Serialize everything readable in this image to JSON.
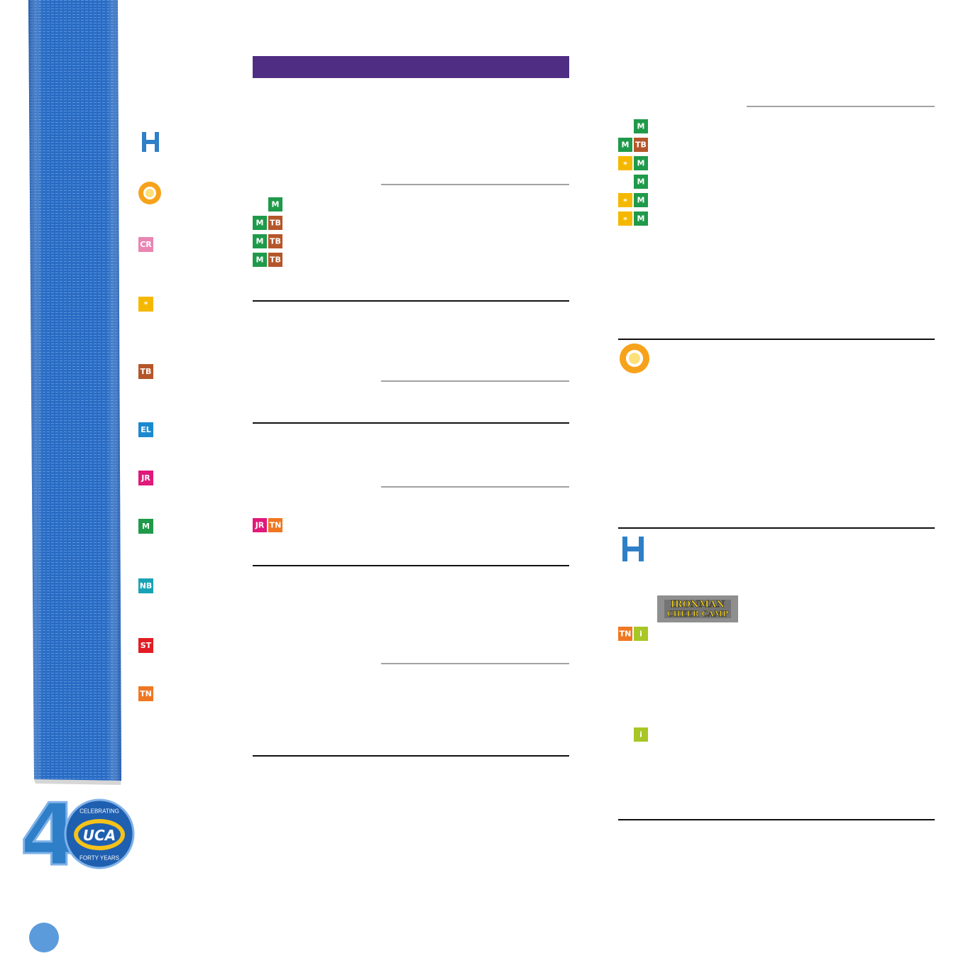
{
  "legend": [
    "CR",
    "TB",
    "EL",
    "JR",
    "M",
    "NB",
    "ST",
    "TN"
  ],
  "left_badges": [
    [
      "M"
    ],
    [
      "M",
      "TB"
    ],
    [
      "M",
      "TB"
    ],
    [
      "M",
      "TB"
    ],
    [
      "JR",
      "TN"
    ]
  ],
  "right_badges": [
    [
      "M"
    ],
    [
      "M",
      "TB"
    ],
    [
      "M"
    ],
    [
      "M"
    ],
    [
      "M"
    ],
    [
      "M"
    ],
    [
      "TN",
      "i"
    ],
    [
      "i"
    ]
  ],
  "ironman": [
    "IRONMAN",
    "CHEER CAMP"
  ],
  "logo": {
    "numeral": "4",
    "celebrating": "CELEBRATING",
    "uca": "UCA",
    "years": "FORTY YEARS"
  }
}
